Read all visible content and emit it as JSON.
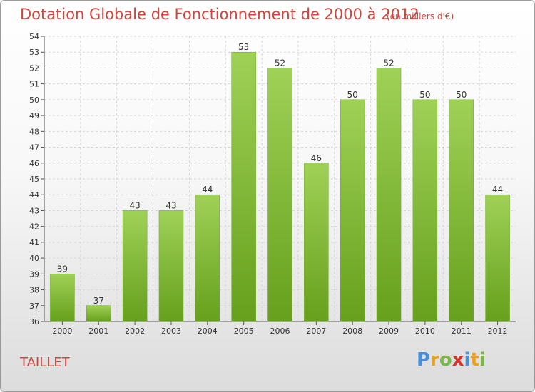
{
  "chart_data": {
    "type": "bar",
    "title": "Dotation Globale de Fonctionnement de 2000 à 2012",
    "subtitle": "(en milliers d'€)",
    "categories": [
      "2000",
      "2001",
      "2002",
      "2003",
      "2004",
      "2005",
      "2006",
      "2007",
      "2008",
      "2009",
      "2010",
      "2011",
      "2012"
    ],
    "values": [
      39,
      37,
      43,
      43,
      44,
      53,
      52,
      46,
      50,
      52,
      50,
      50,
      44
    ],
    "ylim": [
      36,
      54
    ],
    "yticks": [
      36,
      37,
      38,
      39,
      40,
      41,
      42,
      43,
      44,
      45,
      46,
      47,
      48,
      49,
      50,
      51,
      52,
      53,
      54
    ],
    "grid": true,
    "bar_color": "#7db83a"
  },
  "commune": "TAILLET",
  "logo": {
    "letters": [
      "P",
      "r",
      "o",
      "x",
      "i",
      "t",
      "i"
    ],
    "colors": [
      "#4a90d9",
      "#e8a21e",
      "#7ab648",
      "#d9342b",
      "#4a90d9",
      "#e8a21e",
      "#7ab648"
    ]
  }
}
